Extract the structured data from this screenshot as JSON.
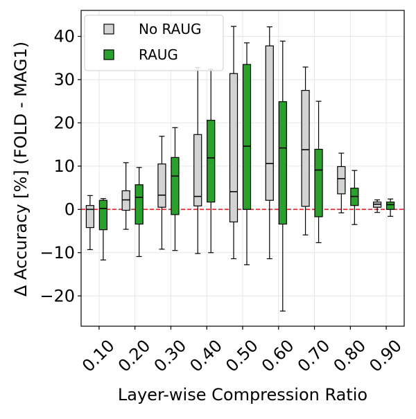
{
  "chart_data": {
    "type": "box",
    "xlabel": "Layer-wise Compression Ratio",
    "ylabel": "Δ Accuracy [%] (FOLD - MAG1)",
    "ylim": [
      -27,
      46
    ],
    "yticks": [
      -20,
      -10,
      0,
      10,
      20,
      30,
      40
    ],
    "ytick_labels": [
      "−20",
      "−10",
      "0",
      "10",
      "20",
      "30",
      "40"
    ],
    "grid": true,
    "legend_position": "top-left",
    "reference_line": {
      "y": 0,
      "color": "#e41a1c",
      "style": "dashed"
    },
    "categories": [
      "0.10",
      "0.20",
      "0.30",
      "0.40",
      "0.50",
      "0.60",
      "0.70",
      "0.80",
      "0.90"
    ],
    "series": [
      {
        "name": "No RAUG",
        "color": "#d3d3d3",
        "boxes": [
          {
            "whisker_low": -9.3,
            "q1": -4.2,
            "median": 0.0,
            "q3": 0.9,
            "whisker_high": 3.2
          },
          {
            "whisker_low": -4.6,
            "q1": -0.2,
            "median": 2.2,
            "q3": 4.3,
            "whisker_high": 10.8
          },
          {
            "whisker_low": -9.2,
            "q1": 0.5,
            "median": 3.3,
            "q3": 10.5,
            "whisker_high": 16.9
          },
          {
            "whisker_low": -10.2,
            "q1": 0.8,
            "median": 3.0,
            "q3": 17.3,
            "whisker_high": 32.8
          },
          {
            "whisker_low": -11.4,
            "q1": -2.9,
            "median": 4.1,
            "q3": 31.4,
            "whisker_high": 42.3
          },
          {
            "whisker_low": -11.4,
            "q1": 2.1,
            "median": 10.6,
            "q3": 37.8,
            "whisker_high": 42.2
          },
          {
            "whisker_low": -5.9,
            "q1": 0.7,
            "median": 13.8,
            "q3": 27.5,
            "whisker_high": 32.9
          },
          {
            "whisker_low": -0.8,
            "q1": 3.6,
            "median": 7.1,
            "q3": 9.9,
            "whisker_high": 13.0
          },
          {
            "whisker_low": -0.7,
            "q1": 0.5,
            "median": 1.2,
            "q3": 1.7,
            "whisker_high": 2.2
          }
        ]
      },
      {
        "name": "RAUG",
        "color": "#2ca02c",
        "boxes": [
          {
            "whisker_low": -11.7,
            "q1": -4.7,
            "median": 0.2,
            "q3": 2.1,
            "whisker_high": 2.5
          },
          {
            "whisker_low": -10.9,
            "q1": -3.4,
            "median": 2.8,
            "q3": 5.7,
            "whisker_high": 9.7
          },
          {
            "whisker_low": -9.5,
            "q1": -1.2,
            "median": 7.7,
            "q3": 12.0,
            "whisker_high": 18.9
          },
          {
            "whisker_low": -10.0,
            "q1": 1.7,
            "median": 11.9,
            "q3": 20.6,
            "whisker_high": 32.4
          },
          {
            "whisker_low": -12.8,
            "q1": 0.0,
            "median": 14.6,
            "q3": 33.5,
            "whisker_high": 38.5
          },
          {
            "whisker_low": -23.5,
            "q1": -3.4,
            "median": 14.2,
            "q3": 24.9,
            "whisker_high": 38.9
          },
          {
            "whisker_low": -7.7,
            "q1": -1.7,
            "median": 9.1,
            "q3": 13.9,
            "whisker_high": 25.0
          },
          {
            "whisker_low": -3.5,
            "q1": 0.9,
            "median": 3.0,
            "q3": 4.9,
            "whisker_high": 9.0
          },
          {
            "whisker_low": -1.6,
            "q1": 0.0,
            "median": 1.1,
            "q3": 1.7,
            "whisker_high": 2.4
          }
        ]
      }
    ]
  }
}
